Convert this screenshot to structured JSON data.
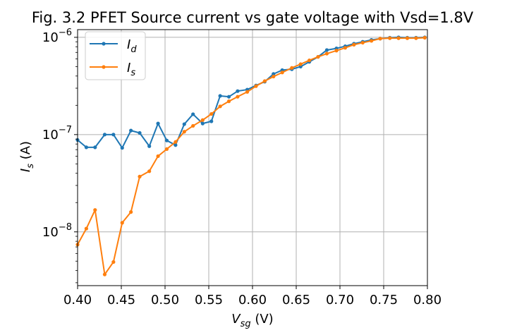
{
  "chart_data": {
    "type": "line",
    "title": "Fig. 3.2 PFET Source current vs gate voltage with Vsd=1.8V",
    "xlabel": {
      "var": "V",
      "sub": "sg",
      "unit": " (V)"
    },
    "ylabel": {
      "var": "I",
      "sub": "s",
      "unit": " (A)"
    },
    "xlim": [
      0.4,
      0.8
    ],
    "ylim": [
      2.8e-09,
      1.2e-06
    ],
    "yscale": "log",
    "grid": true,
    "legend_position": "top-left",
    "xticks": [
      0.4,
      0.45,
      0.5,
      0.55,
      0.6,
      0.65,
      0.7,
      0.75,
      0.8
    ],
    "xtick_labels": [
      "0.40",
      "0.45",
      "0.50",
      "0.55",
      "0.60",
      "0.65",
      "0.70",
      "0.75",
      "0.80"
    ],
    "yticks": [
      {
        "value": 1e-08,
        "base": "10",
        "exp": "−8"
      },
      {
        "value": 1e-07,
        "base": "10",
        "exp": "−7"
      },
      {
        "value": 1e-06,
        "base": "10",
        "exp": "−6"
      }
    ],
    "x": [
      0.4,
      0.41,
      0.42,
      0.431,
      0.441,
      0.451,
      0.461,
      0.471,
      0.482,
      0.492,
      0.502,
      0.512,
      0.522,
      0.532,
      0.543,
      0.553,
      0.563,
      0.573,
      0.583,
      0.594,
      0.604,
      0.614,
      0.624,
      0.634,
      0.645,
      0.655,
      0.665,
      0.675,
      0.685,
      0.696,
      0.706,
      0.716,
      0.726,
      0.736,
      0.746,
      0.757,
      0.767,
      0.777,
      0.787,
      0.797
    ],
    "series": [
      {
        "name": {
          "var": "I",
          "sub": "d"
        },
        "color": "#1f77b4",
        "values": [
          8.8e-08,
          7.4e-08,
          7.4e-08,
          1e-07,
          1e-07,
          7.3e-08,
          1.1e-07,
          1.04e-07,
          7.6e-08,
          1.3e-07,
          8.7e-08,
          7.8e-08,
          1.28e-07,
          1.62e-07,
          1.3e-07,
          1.37e-07,
          2.5e-07,
          2.45e-07,
          2.8e-07,
          2.9e-07,
          3.2e-07,
          3.5e-07,
          4.2e-07,
          4.6e-07,
          4.7e-07,
          5e-07,
          5.6e-07,
          6.3e-07,
          7.4e-07,
          7.7e-07,
          8.1e-07,
          8.6e-07,
          9e-07,
          9.4e-07,
          9.7e-07,
          9.9e-07,
          1e-06,
          9.9e-07,
          9.9e-07,
          1e-06
        ]
      },
      {
        "name": {
          "var": "I",
          "sub": "s"
        },
        "color": "#ff7f0e",
        "values": [
          7.4e-09,
          1.08e-08,
          1.68e-08,
          3.65e-09,
          4.9e-09,
          1.24e-08,
          1.6e-08,
          3.7e-08,
          4.2e-08,
          6e-08,
          7.1e-08,
          8.4e-08,
          1.07e-07,
          1.23e-07,
          1.41e-07,
          1.63e-07,
          1.95e-07,
          2.2e-07,
          2.45e-07,
          2.75e-07,
          3.15e-07,
          3.55e-07,
          3.95e-07,
          4.35e-07,
          4.85e-07,
          5.3e-07,
          5.8e-07,
          6.3e-07,
          6.8e-07,
          7.3e-07,
          7.8e-07,
          8.4e-07,
          8.8e-07,
          9.2e-07,
          9.7e-07,
          9.8e-07,
          9.8e-07,
          9.8e-07,
          9.8e-07,
          9.9e-07
        ]
      }
    ]
  }
}
